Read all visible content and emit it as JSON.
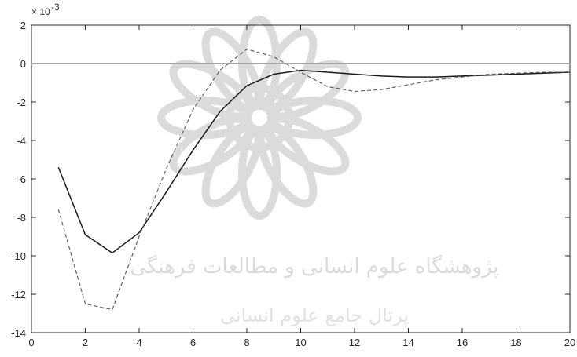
{
  "chart_data": {
    "type": "line",
    "title": "",
    "xlabel": "",
    "ylabel": "",
    "y_exponent_label": "× 10",
    "y_exponent_power": "-3",
    "xlim": [
      0,
      20
    ],
    "ylim": [
      -14,
      2
    ],
    "x_ticks": [
      0,
      2,
      4,
      6,
      8,
      10,
      12,
      14,
      16,
      18,
      20
    ],
    "y_ticks": [
      2,
      0,
      -2,
      -4,
      -6,
      -8,
      -10,
      -12,
      -14
    ],
    "grid": false,
    "zero_line": true,
    "series": [
      {
        "style": "solid",
        "color": "#1a1a1a",
        "x": [
          1,
          2,
          3,
          4,
          5,
          6,
          7,
          8,
          9,
          10,
          11,
          12,
          13,
          14,
          15,
          16,
          17,
          18,
          19,
          20
        ],
        "y": [
          -5.4,
          -8.9,
          -9.85,
          -8.8,
          -6.7,
          -4.5,
          -2.5,
          -1.15,
          -0.55,
          -0.35,
          -0.45,
          -0.55,
          -0.65,
          -0.7,
          -0.7,
          -0.65,
          -0.6,
          -0.55,
          -0.5,
          -0.45
        ]
      },
      {
        "style": "dashed",
        "color": "#555555",
        "x": [
          1,
          2,
          3,
          4,
          5,
          6,
          7,
          8,
          9,
          10,
          11,
          12,
          13,
          14,
          15,
          16,
          17,
          18,
          19,
          20
        ],
        "y": [
          -7.6,
          -12.5,
          -12.8,
          -9.0,
          -5.5,
          -2.4,
          -0.35,
          0.75,
          0.35,
          -0.45,
          -1.2,
          -1.45,
          -1.35,
          -1.1,
          -0.85,
          -0.7,
          -0.55,
          -0.5,
          -0.45,
          -0.45
        ]
      }
    ]
  },
  "watermark": {
    "line1": "پژوهشگاه علوم انسانی و مطالعات فرهنگی",
    "line2": "پرتال جامع علوم انسانی"
  }
}
